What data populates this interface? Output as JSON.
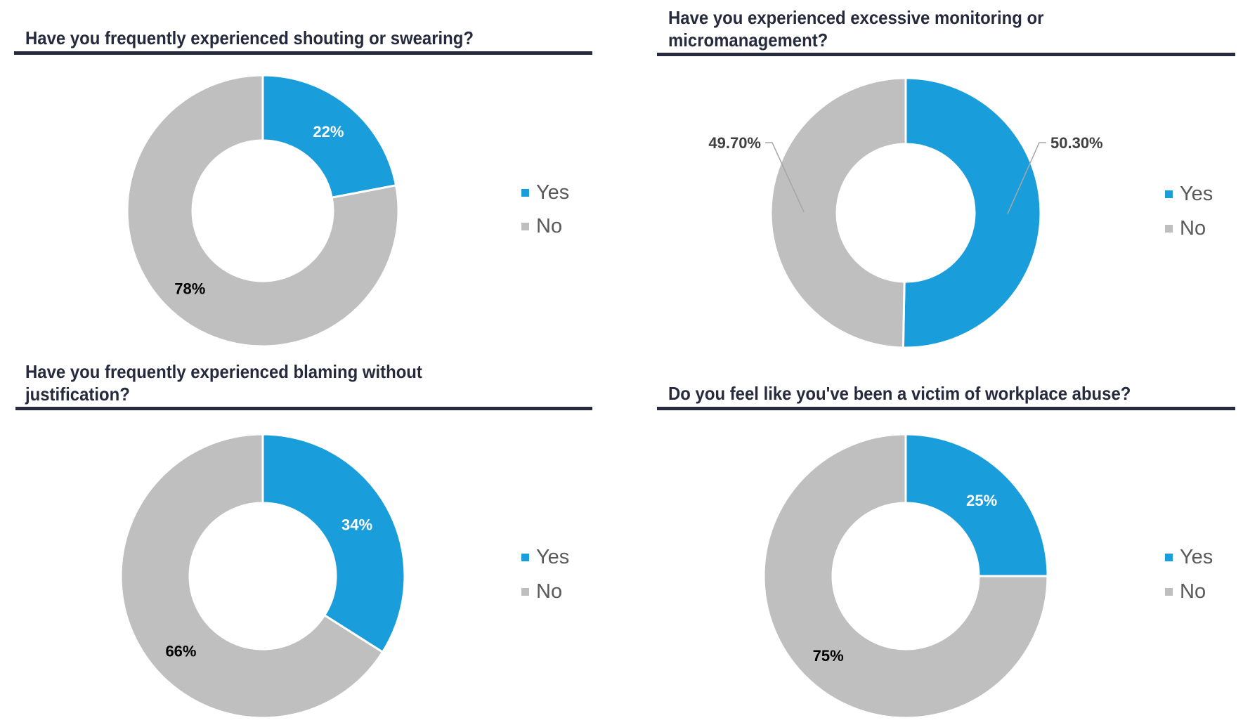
{
  "colors": {
    "yes": "#1a9edb",
    "no": "#bfbfbf",
    "title": "#252a3c",
    "rule": "#262a3e"
  },
  "chart_data": [
    {
      "type": "pie",
      "variant": "donut",
      "title": "Have you frequently experienced shouting or swearing?",
      "categories": [
        "Yes",
        "No"
      ],
      "values": [
        22,
        78
      ],
      "labels": [
        "22%",
        "78%"
      ],
      "legend": [
        "Yes",
        "No"
      ],
      "legend_position": "right"
    },
    {
      "type": "pie",
      "variant": "donut",
      "title_lines": [
        "Have you experienced excessive monitoring or",
        "micromanagement?"
      ],
      "categories": [
        "Yes",
        "No"
      ],
      "values": [
        50.3,
        49.7
      ],
      "labels": [
        "50.30%",
        "49.70%"
      ],
      "label_style": "outside-with-leader",
      "legend": [
        "Yes",
        "No"
      ],
      "legend_position": "right"
    },
    {
      "type": "pie",
      "variant": "donut",
      "title_lines": [
        "Have you frequently experienced blaming without",
        "justification?"
      ],
      "categories": [
        "Yes",
        "No"
      ],
      "values": [
        34,
        66
      ],
      "labels": [
        "34%",
        "66%"
      ],
      "legend": [
        "Yes",
        "No"
      ],
      "legend_position": "right"
    },
    {
      "type": "pie",
      "variant": "donut",
      "title": "Do you feel like you've been a victim of workplace abuse?",
      "categories": [
        "Yes",
        "No"
      ],
      "values": [
        25,
        75
      ],
      "labels": [
        "25%",
        "75%"
      ],
      "legend": [
        "Yes",
        "No"
      ],
      "legend_position": "right"
    }
  ]
}
